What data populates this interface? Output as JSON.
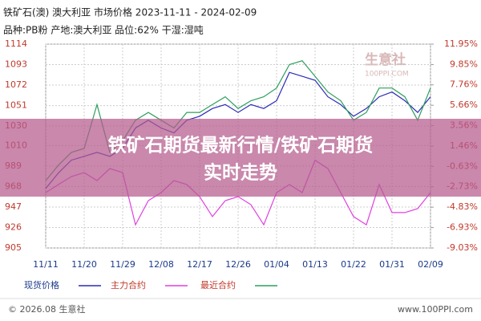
{
  "chart_data": {
    "type": "line",
    "title": "铁矿石(澳) 澳大利亚 市场价格 2023-11-11 - 2024-02-09",
    "subtitle": "品种:PB粉 产地:澳大利亚 品位:62% 干湿:湿吨",
    "banner": "铁矿石期货最新行情/铁矿石期货实时走势",
    "watermark": "生意社",
    "watermark_url": "100PPI.COM",
    "footer_left": "© 2026.08 生意社",
    "footer_right": "www.100PPI.com",
    "categories": [
      "11/11",
      null,
      null,
      "11/20",
      null,
      null,
      "11/29",
      null,
      null,
      "12/08",
      null,
      null,
      "12/17",
      null,
      null,
      "12/26",
      null,
      null,
      "01/04",
      null,
      null,
      "01/13",
      null,
      null,
      "01/22",
      null,
      null,
      "01/31",
      null,
      null,
      "02/09"
    ],
    "series": [
      {
        "name": "现货价格",
        "color": "#2b2bb8",
        "values": [
          966,
          982,
          995,
          999,
          1003,
          999,
          1007,
          1028,
          1036,
          1028,
          1023,
          1036,
          1040,
          1048,
          1052,
          1044,
          1052,
          1048,
          1056,
          1085,
          1081,
          1077,
          1060,
          1052,
          1040,
          1048,
          1060,
          1065,
          1056,
          1044,
          1060
        ]
      },
      {
        "name": "主力合约",
        "color": "#e040e0",
        "axis": "y2",
        "values": [
          -3.33,
          -2.5,
          -1.68,
          -1.27,
          -2.09,
          -0.85,
          -1.27,
          -6.64,
          -4.16,
          -3.33,
          -2.09,
          -2.5,
          -3.74,
          -5.8,
          -4.16,
          -3.74,
          -4.57,
          -6.64,
          -3.33,
          -2.5,
          -3.33,
          0,
          -0.85,
          -3.33,
          -5.8,
          -6.64,
          -2.5,
          -5.39,
          -5.39,
          -4.98,
          -3.33
        ]
      },
      {
        "name": "最近合约",
        "color": "#2e9e5e",
        "values": [
          974,
          990,
          1003,
          1007,
          1052,
          1003,
          1015,
          1036,
          1044,
          1036,
          1028,
          1044,
          1044,
          1052,
          1060,
          1048,
          1056,
          1060,
          1069,
          1093,
          1097,
          1081,
          1065,
          1056,
          1036,
          1044,
          1069,
          1069,
          1060,
          1036,
          1069
        ]
      }
    ],
    "ylim": [
      905,
      1114
    ],
    "yticks": [
      905,
      926,
      947,
      968,
      989,
      1010,
      1030,
      1051,
      1072,
      1093,
      1114
    ],
    "y2lim": [
      -9.03,
      11.95
    ],
    "y2ticks": [
      {
        "value": -9.03,
        "label": "-9.03%"
      },
      {
        "value": -6.93,
        "label": "-6.93%"
      },
      {
        "value": -4.83,
        "label": "-4.83%"
      },
      {
        "value": -2.73,
        "label": "-2.73%"
      },
      {
        "value": -0.63,
        "label": "-0.63%"
      },
      {
        "value": 1.46,
        "label": "1.46%"
      },
      {
        "value": 3.56,
        "label": "3.56%"
      },
      {
        "value": 5.66,
        "label": "5.66%"
      },
      {
        "value": 7.76,
        "label": "7.76%"
      },
      {
        "value": 9.85,
        "label": "9.85%"
      },
      {
        "value": 11.95,
        "label": "11.95%"
      }
    ],
    "grid": true
  }
}
